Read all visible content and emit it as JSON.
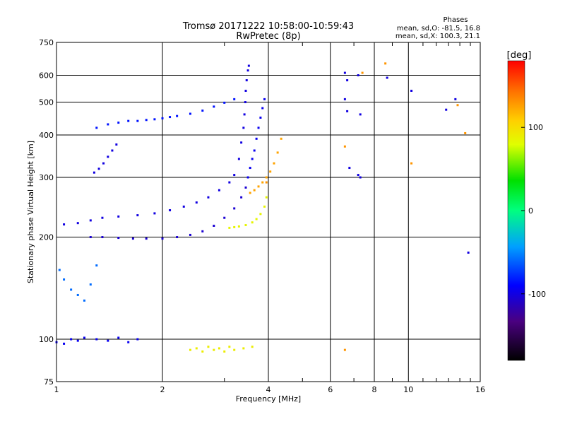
{
  "chart_data": {
    "type": "scatter",
    "title": "Tromsø 20171222 10:58:00-10:59:43",
    "subtitle": "RwPretec (8p)",
    "phases": {
      "heading": "Phases",
      "line_o": "mean, sd,O: -81.5, 16.8",
      "line_x": "mean, sd,X: 100.3, 21.1"
    },
    "xlabel": "Frequency [MHz]",
    "ylabel": "Stationary phase Virtual Height [km]",
    "x_scale": "log",
    "y_scale": "log",
    "xlim": [
      1,
      16
    ],
    "ylim": [
      75,
      750
    ],
    "x_ticks": [
      1,
      2,
      4,
      6,
      8,
      10,
      16
    ],
    "x_tick_labels": [
      "1",
      "2",
      "4",
      "6",
      "8",
      "10",
      "16"
    ],
    "y_ticks": [
      75,
      100,
      200,
      300,
      400,
      500,
      600,
      750
    ],
    "y_tick_labels": [
      "75",
      "100",
      "200",
      "300",
      "400",
      "500",
      "600",
      "750"
    ],
    "grid": true,
    "colorbar": {
      "label": "[deg]",
      "range": [
        -180,
        180
      ],
      "ticks": [
        100,
        0,
        -100
      ],
      "tick_labels": [
        "100",
        "0",
        "-100"
      ]
    },
    "series": [
      {
        "name": "",
        "color_phase": -105,
        "x": [
          1.25,
          1.35,
          1.5,
          1.65,
          1.8,
          2.0,
          2.2,
          2.4,
          2.6,
          2.8,
          3.0,
          3.2,
          3.35,
          3.45
        ],
        "y": [
          200,
          200,
          199,
          198,
          198,
          198,
          200,
          203,
          208,
          216,
          228,
          243,
          262,
          280
        ]
      },
      {
        "name": "",
        "color_phase": -100,
        "x": [
          1.05,
          1.15,
          1.25,
          1.35,
          1.5,
          1.7,
          1.9,
          2.1,
          2.3,
          2.5,
          2.7,
          2.9,
          3.1,
          3.2
        ],
        "y": [
          218,
          220,
          224,
          228,
          230,
          232,
          235,
          240,
          246,
          253,
          262,
          275,
          290,
          305
        ]
      },
      {
        "name": "",
        "color_phase": -85,
        "x": [
          1.3,
          1.4,
          1.5,
          1.6,
          1.7,
          1.8,
          1.9,
          2.0,
          2.1,
          2.2,
          2.4,
          2.6,
          2.8,
          3.0,
          3.2
        ],
        "y": [
          420,
          430,
          435,
          440,
          440,
          443,
          445,
          448,
          452,
          455,
          462,
          472,
          485,
          498,
          510
        ]
      },
      {
        "name": "",
        "color_phase": -100,
        "x": [
          3.3,
          3.35,
          3.4,
          3.42,
          3.44,
          3.45,
          3.47,
          3.5,
          3.52
        ],
        "y": [
          340,
          380,
          420,
          460,
          500,
          540,
          580,
          620,
          640
        ]
      },
      {
        "name": "",
        "color_phase": -95,
        "x": [
          3.5,
          3.55,
          3.6,
          3.65,
          3.7,
          3.75,
          3.8,
          3.85,
          3.9
        ],
        "y": [
          300,
          320,
          340,
          360,
          390,
          420,
          450,
          480,
          510
        ]
      },
      {
        "name": "",
        "color_phase": 125,
        "x": [
          3.55,
          3.65,
          3.75,
          3.85,
          3.95,
          4.05,
          4.15,
          4.25,
          4.35
        ],
        "y": [
          270,
          275,
          282,
          290,
          300,
          312,
          330,
          355,
          390
        ]
      },
      {
        "name": "",
        "color_phase": 85,
        "x": [
          3.1,
          3.2,
          3.3,
          3.45,
          3.6,
          3.7,
          3.8,
          3.9,
          3.95
        ],
        "y": [
          213,
          214,
          215,
          217,
          221,
          226,
          234,
          246,
          262
        ]
      },
      {
        "name": "",
        "color_phase": -100,
        "x": [
          1.28,
          1.32,
          1.36,
          1.4,
          1.44,
          1.48
        ],
        "y": [
          310,
          318,
          330,
          345,
          360,
          375
        ]
      },
      {
        "name": "",
        "color_phase": -95,
        "x": [
          1.0,
          1.05,
          1.1,
          1.15,
          1.2,
          1.3,
          1.4,
          1.5,
          1.6,
          1.7
        ],
        "y": [
          98,
          97,
          100,
          99,
          101,
          100,
          99,
          101,
          98,
          100
        ]
      },
      {
        "name": "",
        "color_phase": -60,
        "x": [
          1.02,
          1.05,
          1.1,
          1.15,
          1.2,
          1.25,
          1.3
        ],
        "y": [
          160,
          150,
          140,
          135,
          130,
          145,
          165
        ]
      },
      {
        "name": "",
        "color_phase": 90,
        "x": [
          2.4,
          2.5,
          2.6,
          2.7,
          2.8,
          2.9,
          3.0,
          3.1,
          3.2,
          3.4,
          3.6
        ],
        "y": [
          93,
          94,
          92,
          95,
          93,
          94,
          92,
          95,
          93,
          94,
          95
        ]
      },
      {
        "name": "",
        "color_phase": -100,
        "x": [
          6.6,
          6.7,
          6.8,
          7.2,
          7.3,
          8.7,
          10.2,
          12.8,
          13.6,
          14.8,
          6.6,
          7.3,
          6.7,
          7.2
        ],
        "y": [
          610,
          580,
          320,
          600,
          300,
          590,
          540,
          475,
          510,
          180,
          510,
          460,
          470,
          305
        ]
      },
      {
        "name": "",
        "color_phase": 130,
        "x": [
          6.6,
          7.4,
          8.6,
          10.2,
          13.8,
          14.5,
          6.6,
          3.95
        ],
        "y": [
          93,
          610,
          650,
          330,
          490,
          405,
          370,
          290
        ]
      }
    ]
  }
}
